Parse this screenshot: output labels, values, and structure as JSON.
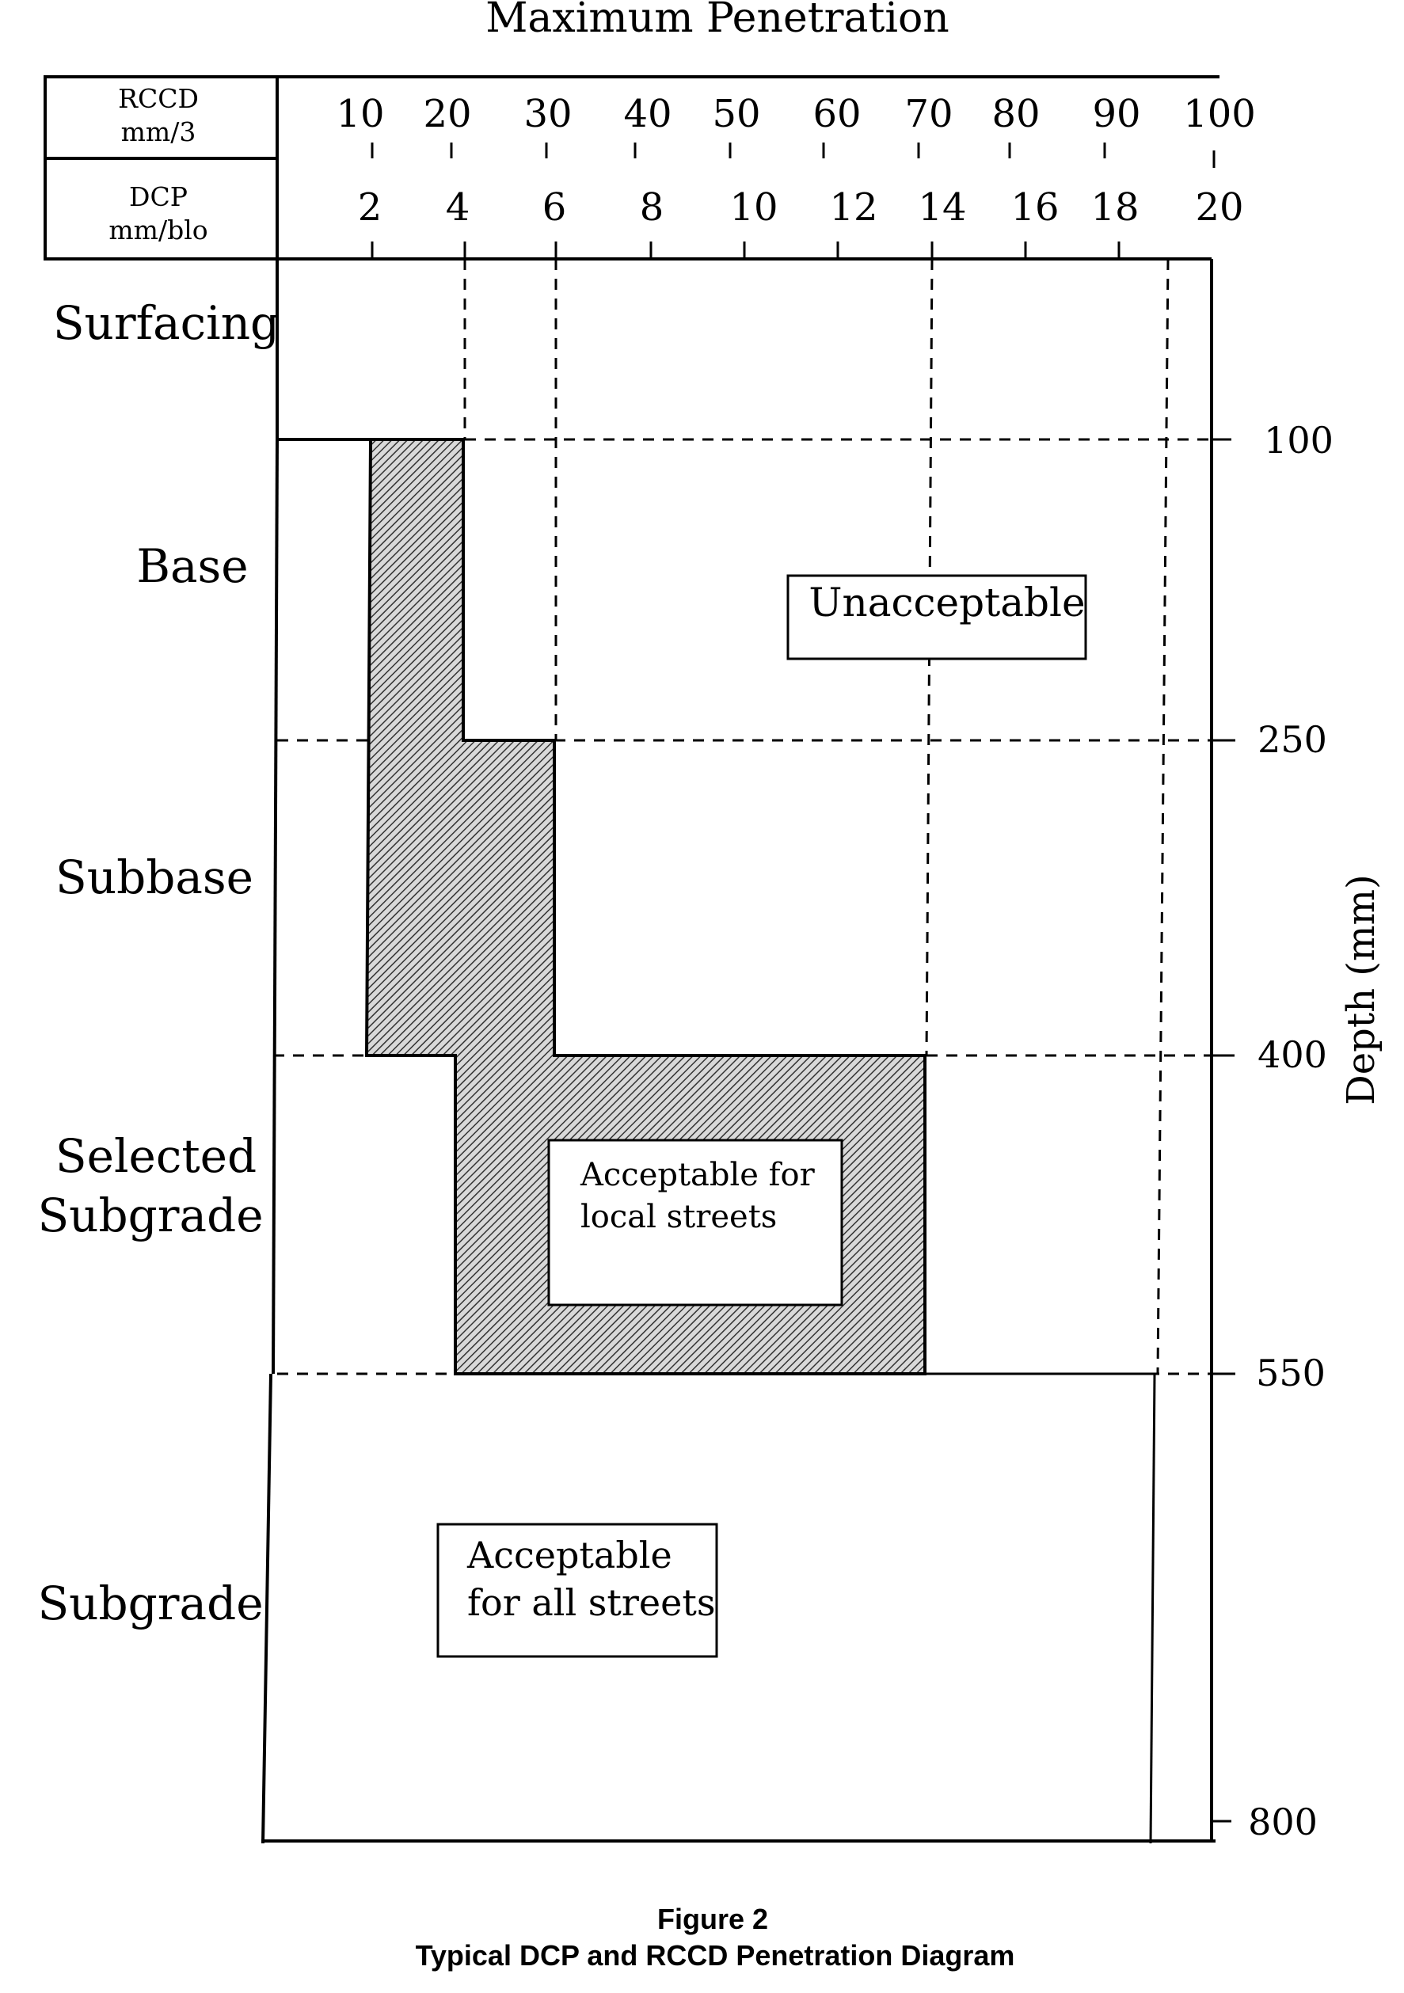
{
  "title": "Maximum Penetration",
  "rccd_header": [
    "RCCD",
    "mm/3"
  ],
  "dcp_header": [
    "DCP",
    "mm/blo"
  ],
  "rccd_ticks": [
    "10",
    "20",
    "30",
    "40",
    "50",
    "60",
    "70",
    "80",
    "90",
    "100"
  ],
  "dcp_ticks": [
    "2",
    "4",
    "6",
    "8",
    "10",
    "12",
    "14",
    "16",
    "18",
    "20"
  ],
  "layers": [
    "Surfacing",
    "Base",
    "Subbase",
    "Selected",
    "Subgrade",
    "Subgrade"
  ],
  "depth_ticks": [
    "100",
    "250",
    "400",
    "550",
    "800"
  ],
  "depth_axis_label": "Depth (mm)",
  "labels": {
    "unacceptable": "Unacceptable",
    "local_line1": "Acceptable for",
    "local_line2": "local streets",
    "all_line1": "Acceptable",
    "all_line2": "for all streets"
  },
  "caption": {
    "line1": "Figure 2",
    "line2": "Typical DCP and RCCD Penetration Diagram"
  },
  "chart_data": {
    "type": "diagram",
    "x_axes": {
      "rccd_mm_per_3": [
        10,
        20,
        30,
        40,
        50,
        60,
        70,
        80,
        90,
        100
      ],
      "dcp_mm_per_blow": [
        2,
        4,
        6,
        8,
        10,
        12,
        14,
        16,
        18,
        20
      ]
    },
    "depth_mm": [
      100,
      250,
      400,
      550,
      800
    ],
    "acceptable_for_all_streets_dcp_limit": [
      {
        "layer": "Base",
        "depth_from": 100,
        "depth_to": 250,
        "dcp_from": 2,
        "dcp_to": 4
      },
      {
        "layer": "Subbase",
        "depth_from": 250,
        "depth_to": 400,
        "dcp_from": 2,
        "dcp_to": 6
      },
      {
        "layer": "Selected Subgrade",
        "depth_from": 400,
        "depth_to": 550,
        "dcp_from": 4,
        "dcp_to": 14
      }
    ]
  }
}
